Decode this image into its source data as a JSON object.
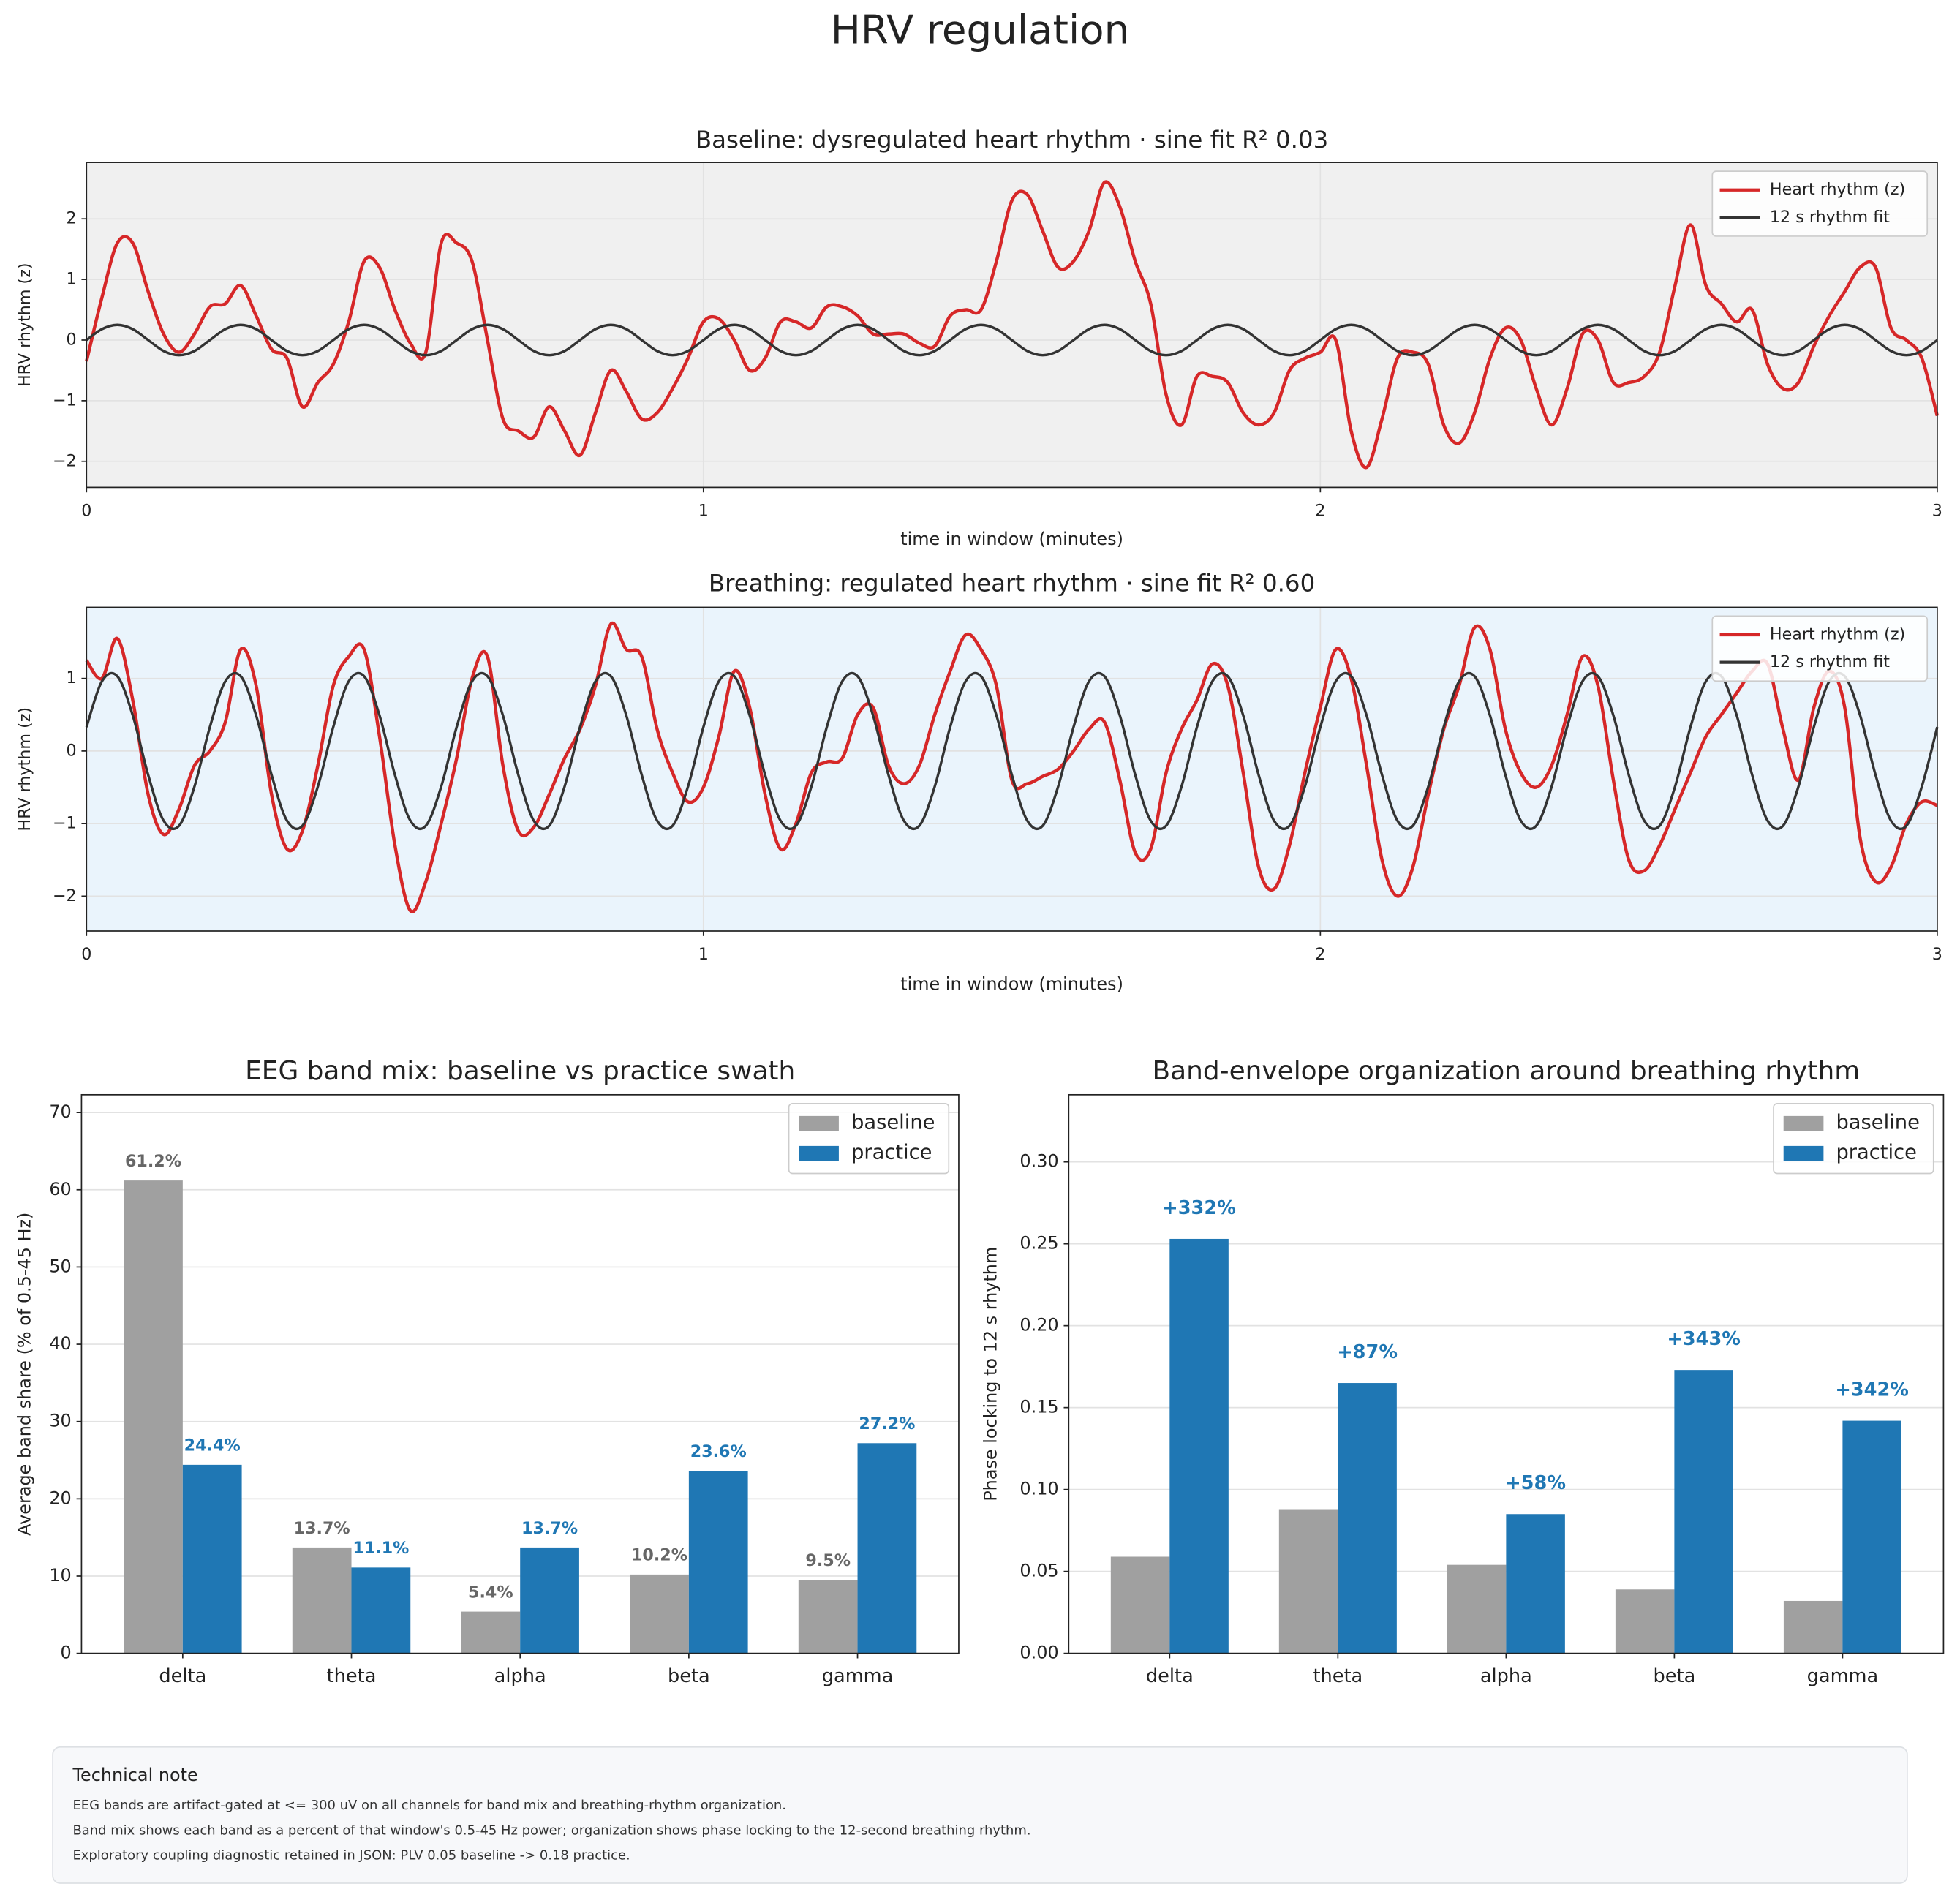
{
  "title": "HRV regulation",
  "chart_data": [
    {
      "type": "line",
      "title": "Baseline: dysregulated heart rhythm · sine fit R² 0.03",
      "xlabel": "time in window (minutes)",
      "ylabel": "HRV rhythm (z)",
      "background": "#f0f0f0",
      "grid": true,
      "legend": "upper right",
      "xlim": [
        0,
        3
      ],
      "xticks": [
        0,
        1,
        2,
        3
      ],
      "ylim": [
        -2.43,
        2.93
      ],
      "yticks": [
        {
          "value": -2,
          "label": "−2"
        },
        {
          "value": -1,
          "label": "−1"
        },
        0,
        1,
        2
      ],
      "x": [
        0,
        0.025,
        0.05,
        0.075,
        0.1,
        0.125,
        0.15,
        0.175,
        0.2,
        0.225,
        0.25,
        0.275,
        0.3,
        0.325,
        0.35,
        0.375,
        0.4,
        0.425,
        0.45,
        0.475,
        0.5,
        0.525,
        0.55,
        0.575,
        0.6,
        0.625,
        0.65,
        0.675,
        0.7,
        0.725,
        0.75,
        0.775,
        0.8,
        0.825,
        0.85,
        0.875,
        0.9,
        0.925,
        0.95,
        0.975,
        1,
        1.025,
        1.05,
        1.075,
        1.1,
        1.125,
        1.15,
        1.175,
        1.2,
        1.225,
        1.25,
        1.275,
        1.3,
        1.325,
        1.35,
        1.375,
        1.4,
        1.425,
        1.45,
        1.475,
        1.5,
        1.525,
        1.55,
        1.575,
        1.6,
        1.625,
        1.65,
        1.675,
        1.7,
        1.725,
        1.75,
        1.775,
        1.8,
        1.825,
        1.85,
        1.875,
        1.9,
        1.925,
        1.95,
        1.975,
        2,
        2.025,
        2.05,
        2.075,
        2.1,
        2.125,
        2.15,
        2.175,
        2.2,
        2.225,
        2.25,
        2.275,
        2.3,
        2.325,
        2.35,
        2.375,
        2.4,
        2.425,
        2.45,
        2.475,
        2.5,
        2.525,
        2.55,
        2.575,
        2.6,
        2.625,
        2.65,
        2.675,
        2.7,
        2.725,
        2.75,
        2.775,
        2.8,
        2.825,
        2.85,
        2.875,
        2.9,
        2.925,
        2.95,
        2.975,
        3
      ],
      "series": [
        {
          "name": "Heart rhythm (z)",
          "color": "#d62728",
          "values": [
            -0.35,
            0.7,
            1.6,
            1.6,
            0.8,
            0.1,
            -0.2,
            0.1,
            0.55,
            0.6,
            0.9,
            0.4,
            -0.15,
            -0.3,
            -1.1,
            -0.7,
            -0.4,
            0.3,
            1.3,
            1.2,
            0.5,
            -0.05,
            -0.2,
            1.6,
            1.6,
            1.3,
            0.0,
            -1.3,
            -1.5,
            -1.6,
            -1.1,
            -1.5,
            -1.9,
            -1.2,
            -0.5,
            -0.85,
            -1.3,
            -1.2,
            -0.8,
            -0.3,
            0.3,
            0.35,
            0.0,
            -0.5,
            -0.3,
            0.3,
            0.3,
            0.2,
            0.55,
            0.55,
            0.4,
            0.1,
            0.1,
            0.1,
            -0.05,
            -0.1,
            0.4,
            0.5,
            0.5,
            1.3,
            2.3,
            2.4,
            1.8,
            1.2,
            1.3,
            1.8,
            2.6,
            2.2,
            1.3,
            0.6,
            -0.9,
            -1.4,
            -0.6,
            -0.6,
            -0.7,
            -1.2,
            -1.4,
            -1.2,
            -0.5,
            -0.3,
            -0.2,
            0.0,
            -1.5,
            -2.1,
            -1.3,
            -0.3,
            -0.2,
            -0.4,
            -1.4,
            -1.7,
            -1.2,
            -0.3,
            0.2,
            0.0,
            -0.8,
            -1.4,
            -0.8,
            0.1,
            0.0,
            -0.7,
            -0.7,
            -0.6,
            -0.2,
            0.9,
            1.9,
            0.9,
            0.6,
            0.3,
            0.5,
            -0.4,
            -0.8,
            -0.7,
            -0.1,
            0.4,
            0.8,
            1.2,
            1.2,
            0.2,
            0.0,
            -0.3,
            -1.25
          ]
        },
        {
          "name": "12 s rhythm fit",
          "color": "#333333",
          "values": [
            0,
            0.18,
            0.25,
            0.18,
            0,
            -0.18,
            -0.25,
            -0.18,
            0,
            0.18,
            0.25,
            0.18,
            0,
            -0.18,
            -0.25,
            -0.18,
            0,
            0.18,
            0.25,
            0.18,
            0,
            -0.18,
            -0.25,
            -0.18,
            0,
            0.18,
            0.25,
            0.18,
            0,
            -0.18,
            -0.25,
            -0.18,
            0,
            0.18,
            0.25,
            0.18,
            0,
            -0.18,
            -0.25,
            -0.18,
            0,
            0.18,
            0.25,
            0.18,
            0,
            -0.18,
            -0.25,
            -0.18,
            0,
            0.18,
            0.25,
            0.18,
            0,
            -0.18,
            -0.25,
            -0.18,
            0,
            0.18,
            0.25,
            0.18,
            0,
            -0.18,
            -0.25,
            -0.18,
            0,
            0.18,
            0.25,
            0.18,
            0,
            -0.18,
            -0.25,
            -0.18,
            0,
            0.18,
            0.25,
            0.18,
            0,
            -0.18,
            -0.25,
            -0.18,
            0,
            0.18,
            0.25,
            0.18,
            0,
            -0.18,
            -0.25,
            -0.18,
            0,
            0.18,
            0.25,
            0.18,
            0,
            -0.18,
            -0.25,
            -0.18,
            0,
            0.18,
            0.25,
            0.18,
            0,
            -0.18,
            -0.25,
            -0.18,
            0,
            0.18,
            0.25,
            0.18,
            0,
            -0.18,
            -0.25,
            -0.18,
            0,
            0.18,
            0.25,
            0.18,
            0,
            -0.18,
            -0.25,
            -0.18,
            0
          ]
        }
      ]
    },
    {
      "type": "line",
      "title": "Breathing: regulated heart rhythm · sine fit R² 0.60",
      "xlabel": "time in window (minutes)",
      "ylabel": "HRV rhythm (z)",
      "background": "#eaf4fc",
      "grid": true,
      "legend": "upper right",
      "xlim": [
        0,
        3
      ],
      "xticks": [
        0,
        1,
        2,
        3
      ],
      "ylim": [
        -2.48,
        1.98
      ],
      "yticks": [
        {
          "value": -2,
          "label": "−2"
        },
        {
          "value": -1,
          "label": "−1"
        },
        0,
        1
      ],
      "x": [
        0,
        0.025,
        0.05,
        0.075,
        0.1,
        0.125,
        0.15,
        0.175,
        0.2,
        0.225,
        0.25,
        0.275,
        0.3,
        0.325,
        0.35,
        0.375,
        0.4,
        0.425,
        0.45,
        0.475,
        0.5,
        0.525,
        0.55,
        0.575,
        0.6,
        0.625,
        0.65,
        0.675,
        0.7,
        0.725,
        0.75,
        0.775,
        0.8,
        0.825,
        0.85,
        0.875,
        0.9,
        0.925,
        0.95,
        0.975,
        1,
        1.025,
        1.05,
        1.075,
        1.1,
        1.125,
        1.15,
        1.175,
        1.2,
        1.225,
        1.25,
        1.275,
        1.3,
        1.325,
        1.35,
        1.375,
        1.4,
        1.425,
        1.45,
        1.475,
        1.5,
        1.525,
        1.55,
        1.575,
        1.6,
        1.625,
        1.65,
        1.675,
        1.7,
        1.725,
        1.75,
        1.775,
        1.8,
        1.825,
        1.85,
        1.875,
        1.9,
        1.925,
        1.95,
        1.975,
        2,
        2.025,
        2.05,
        2.075,
        2.1,
        2.125,
        2.15,
        2.175,
        2.2,
        2.225,
        2.25,
        2.275,
        2.3,
        2.325,
        2.35,
        2.375,
        2.4,
        2.425,
        2.45,
        2.475,
        2.5,
        2.525,
        2.55,
        2.575,
        2.6,
        2.625,
        2.65,
        2.675,
        2.7,
        2.725,
        2.75,
        2.775,
        2.8,
        2.825,
        2.85,
        2.875,
        2.9,
        2.925,
        2.95,
        2.975,
        3
      ],
      "series": [
        {
          "name": "Heart rhythm (z)",
          "color": "#d62728",
          "values": [
            1.25,
            1.0,
            1.55,
            0.7,
            -0.6,
            -1.15,
            -0.8,
            -0.2,
            0.0,
            0.4,
            1.4,
            0.9,
            -0.6,
            -1.35,
            -1.1,
            -0.2,
            0.9,
            1.3,
            1.4,
            0.2,
            -1.3,
            -2.2,
            -1.8,
            -1.0,
            -0.1,
            1.0,
            1.3,
            -0.2,
            -1.1,
            -1.05,
            -0.6,
            -0.1,
            0.3,
            0.9,
            1.75,
            1.4,
            1.3,
            0.3,
            -0.3,
            -0.7,
            -0.5,
            0.2,
            1.1,
            0.6,
            -0.6,
            -1.35,
            -1.0,
            -0.3,
            -0.15,
            -0.1,
            0.5,
            0.6,
            -0.2,
            -0.45,
            -0.2,
            0.5,
            1.1,
            1.6,
            1.4,
            0.9,
            -0.4,
            -0.45,
            -0.35,
            -0.25,
            0.0,
            0.3,
            0.4,
            -0.4,
            -1.4,
            -1.35,
            -0.3,
            0.3,
            0.7,
            1.2,
            0.9,
            -0.3,
            -1.6,
            -1.9,
            -1.3,
            -0.3,
            0.6,
            1.4,
            1.0,
            -0.2,
            -1.5,
            -2.0,
            -1.6,
            -0.6,
            0.3,
            0.9,
            1.7,
            1.4,
            0.3,
            -0.3,
            -0.5,
            -0.2,
            0.5,
            1.3,
            0.9,
            -0.4,
            -1.5,
            -1.65,
            -1.3,
            -0.8,
            -0.3,
            0.2,
            0.5,
            0.8,
            1.1,
            1.2,
            0.3,
            -0.4,
            0.6,
            1.1,
            0.6,
            -1.2,
            -1.8,
            -1.6,
            -1.0,
            -0.7,
            -0.75
          ]
        },
        {
          "name": "12 s rhythm fit",
          "color": "#333333",
          "values": [
            0.33,
            0.96,
            1.03,
            0.49,
            -0.33,
            -0.96,
            -1.03,
            -0.49,
            0.33,
            0.96,
            1.03,
            0.49,
            -0.33,
            -0.96,
            -1.03,
            -0.49,
            0.33,
            0.96,
            1.03,
            0.49,
            -0.33,
            -0.96,
            -1.03,
            -0.49,
            0.33,
            0.96,
            1.03,
            0.49,
            -0.33,
            -0.96,
            -1.03,
            -0.49,
            0.33,
            0.96,
            1.03,
            0.49,
            -0.33,
            -0.96,
            -1.03,
            -0.49,
            0.33,
            0.96,
            1.03,
            0.49,
            -0.33,
            -0.96,
            -1.03,
            -0.49,
            0.33,
            0.96,
            1.03,
            0.49,
            -0.33,
            -0.96,
            -1.03,
            -0.49,
            0.33,
            0.96,
            1.03,
            0.49,
            -0.33,
            -0.96,
            -1.03,
            -0.49,
            0.33,
            0.96,
            1.03,
            0.49,
            -0.33,
            -0.96,
            -1.03,
            -0.49,
            0.33,
            0.96,
            1.03,
            0.49,
            -0.33,
            -0.96,
            -1.03,
            -0.49,
            0.33,
            0.96,
            1.03,
            0.49,
            -0.33,
            -0.96,
            -1.03,
            -0.49,
            0.33,
            0.96,
            1.03,
            0.49,
            -0.33,
            -0.96,
            -1.03,
            -0.49,
            0.33,
            0.96,
            1.03,
            0.49,
            -0.33,
            -0.96,
            -1.03,
            -0.49,
            0.33,
            0.96,
            1.03,
            0.49,
            -0.33,
            -0.96,
            -1.03,
            -0.49,
            0.33,
            0.96,
            1.03,
            0.49,
            -0.33,
            -0.96,
            -1.03,
            -0.49,
            0.33
          ]
        }
      ]
    },
    {
      "type": "bar",
      "title": "EEG band mix: baseline vs practice swath",
      "ylabel": "Average band share (% of 0.5-45 Hz)",
      "grid": true,
      "legend": "upper right",
      "ylim": [
        0,
        72.3
      ],
      "yticks": [
        0,
        10,
        20,
        30,
        40,
        50,
        60,
        70
      ],
      "categories": [
        "delta",
        "theta",
        "alpha",
        "beta",
        "gamma"
      ],
      "series": [
        {
          "name": "baseline",
          "color": "#a0a0a0",
          "label_color": "#666666",
          "values": [
            61.2,
            13.7,
            5.4,
            10.2,
            9.5
          ],
          "value_labels": [
            "61.2%",
            "13.7%",
            "5.4%",
            "10.2%",
            "9.5%"
          ]
        },
        {
          "name": "practice",
          "color": "#1f77b4",
          "label_color": "#1f77b4",
          "values": [
            24.4,
            11.1,
            13.7,
            23.6,
            27.2
          ],
          "value_labels": [
            "24.4%",
            "11.1%",
            "13.7%",
            "23.6%",
            "27.2%"
          ]
        }
      ]
    },
    {
      "type": "bar",
      "title": "Band-envelope organization around breathing rhythm",
      "ylabel": "Phase locking to 12 s rhythm",
      "grid": true,
      "legend": "upper right",
      "ylim": [
        0,
        0.341
      ],
      "yticks": [
        {
          "value": 0,
          "label": "0.00"
        },
        0.05,
        {
          "value": 0.1,
          "label": "0.10"
        },
        0.15,
        {
          "value": 0.2,
          "label": "0.20"
        },
        0.25,
        {
          "value": 0.3,
          "label": "0.30"
        }
      ],
      "categories": [
        "delta",
        "theta",
        "alpha",
        "beta",
        "gamma"
      ],
      "annotations": [
        "+332%",
        "+87%",
        "+58%",
        "+343%",
        "+342%"
      ],
      "series": [
        {
          "name": "baseline",
          "color": "#a0a0a0",
          "label_color": "#666666",
          "values": [
            0.059,
            0.088,
            0.054,
            0.039,
            0.032
          ]
        },
        {
          "name": "practice",
          "color": "#1f77b4",
          "label_color": "#1f77b4",
          "values": [
            0.253,
            0.165,
            0.085,
            0.173,
            0.142
          ]
        }
      ]
    }
  ],
  "note": {
    "title": "Technical note",
    "lines": [
      "EEG bands are artifact-gated at <= 300 uV on all channels for band mix and breathing-rhythm organization.",
      "Band mix shows each band as a percent of that window's 0.5-45 Hz power; organization shows phase locking to the 12-second breathing rhythm.",
      "Exploratory coupling diagnostic retained in JSON: PLV 0.05 baseline -> 0.18 practice."
    ]
  }
}
